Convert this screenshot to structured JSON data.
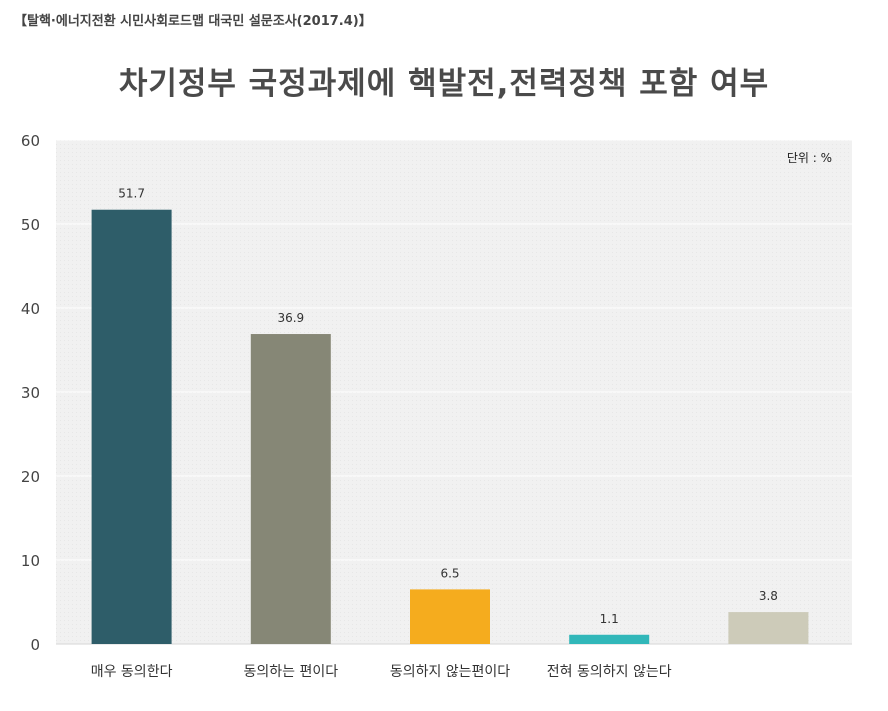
{
  "source_note": "【탈핵·에너지전환 시민사회로드맵 대국민 설문조사(2017.4)】",
  "chart_data": {
    "type": "bar",
    "title": "차기정부 국정과제에 핵발전,전력정책 포함 여부",
    "unit_label": "단위 : %",
    "categories": [
      "매우 동의한다",
      "동의하는 편이다",
      "동의하지 않는편이다",
      "전혀 동의하지 않는다",
      ""
    ],
    "values": [
      51.7,
      36.9,
      6.5,
      1.1,
      3.8
    ],
    "value_labels": [
      "51.7",
      "36.9",
      "6.5",
      "1.1",
      "3.8"
    ],
    "colors": [
      "#2e5d69",
      "#868776",
      "#f5ac1e",
      "#31b7b9",
      "#cdcbb9"
    ],
    "ylim": [
      0,
      60
    ],
    "yticks": [
      "0",
      "10",
      "20",
      "30",
      "40",
      "50",
      "60"
    ],
    "grid": true,
    "legend": "none"
  }
}
